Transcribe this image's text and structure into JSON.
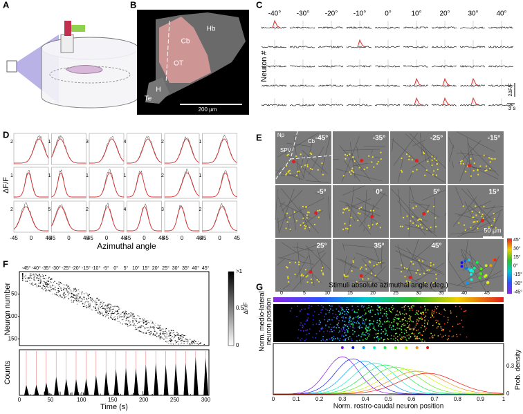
{
  "panel_labels": [
    "A",
    "B",
    "C",
    "D",
    "E",
    "F",
    "G"
  ],
  "b": {
    "labels": [
      "Hb",
      "Cb",
      "OT",
      "H",
      "Te"
    ],
    "scale": "200 µm"
  },
  "c": {
    "angles": [
      "-40°",
      "-30°",
      "-20°",
      "-10°",
      "0°",
      "10°",
      "20°",
      "30°",
      "40°"
    ],
    "ylabel": "Neuron #",
    "scale_y": "2ΔF/F",
    "scale_x": "3 s"
  },
  "d": {
    "ylabel": "ΔF/F",
    "xlabel": "Azimuthal angle",
    "xticks": [
      "-45",
      "0",
      "45"
    ],
    "ymax": [
      [
        "2",
        "1",
        "3",
        "4",
        "2",
        "1"
      ],
      [
        "1",
        "1",
        "1",
        "1",
        "2",
        "1"
      ],
      [
        "2",
        "5",
        "2",
        "4",
        "3",
        "2"
      ]
    ]
  },
  "e": {
    "angles": [
      "-45°",
      "-35°",
      "-25°",
      "-15°",
      "-5°",
      "0°",
      "5°",
      "15°",
      "25°",
      "35°",
      "45°"
    ],
    "regions": [
      "Np",
      "Cb",
      "SPV"
    ],
    "scale": "50 µm",
    "colorbar_ticks": [
      "45°",
      "30°",
      "15°",
      "0°",
      "-15°",
      "-30°",
      "-45°"
    ]
  },
  "f": {
    "angles": [
      "-45°",
      "-40°",
      "-35°",
      "-30°",
      "-25°",
      "-20°",
      "-15°",
      "-10°",
      "-5°",
      "0°",
      "5°",
      "10°",
      "15°",
      "20°",
      "25°",
      "30°",
      "35°",
      "40°",
      "45°"
    ],
    "ylabel": "Neuron number",
    "yticks": [
      "50",
      "100",
      "150"
    ],
    "colorbar_ticks": [
      ">1",
      "0.5",
      "0"
    ],
    "colorbar_label": "ΔF/F",
    "hist_ylabel": "Counts",
    "xticks": [
      "0",
      "50",
      "100",
      "150",
      "200",
      "250",
      "300"
    ],
    "xlabel": "Time (s)"
  },
  "g": {
    "title": "Stimuli absolute azimuthal angle (deg.)",
    "colorbar_ticks": [
      "0",
      "5",
      "10",
      "15",
      "20",
      "25",
      "30",
      "35",
      "40",
      "45"
    ],
    "ylabel": [
      "Norm. medio-lateral",
      "neuron position"
    ],
    "y2label": "Prob. density",
    "y2ticks": [
      "0",
      "0.3"
    ],
    "xticks": [
      "0",
      "0.1",
      "0.2",
      "0.3",
      "0.4",
      "0.5",
      "0.6",
      "0.7",
      "0.8",
      "0.9",
      "1"
    ],
    "xlabel": "Norm. rostro-caudal neuron position"
  }
}
